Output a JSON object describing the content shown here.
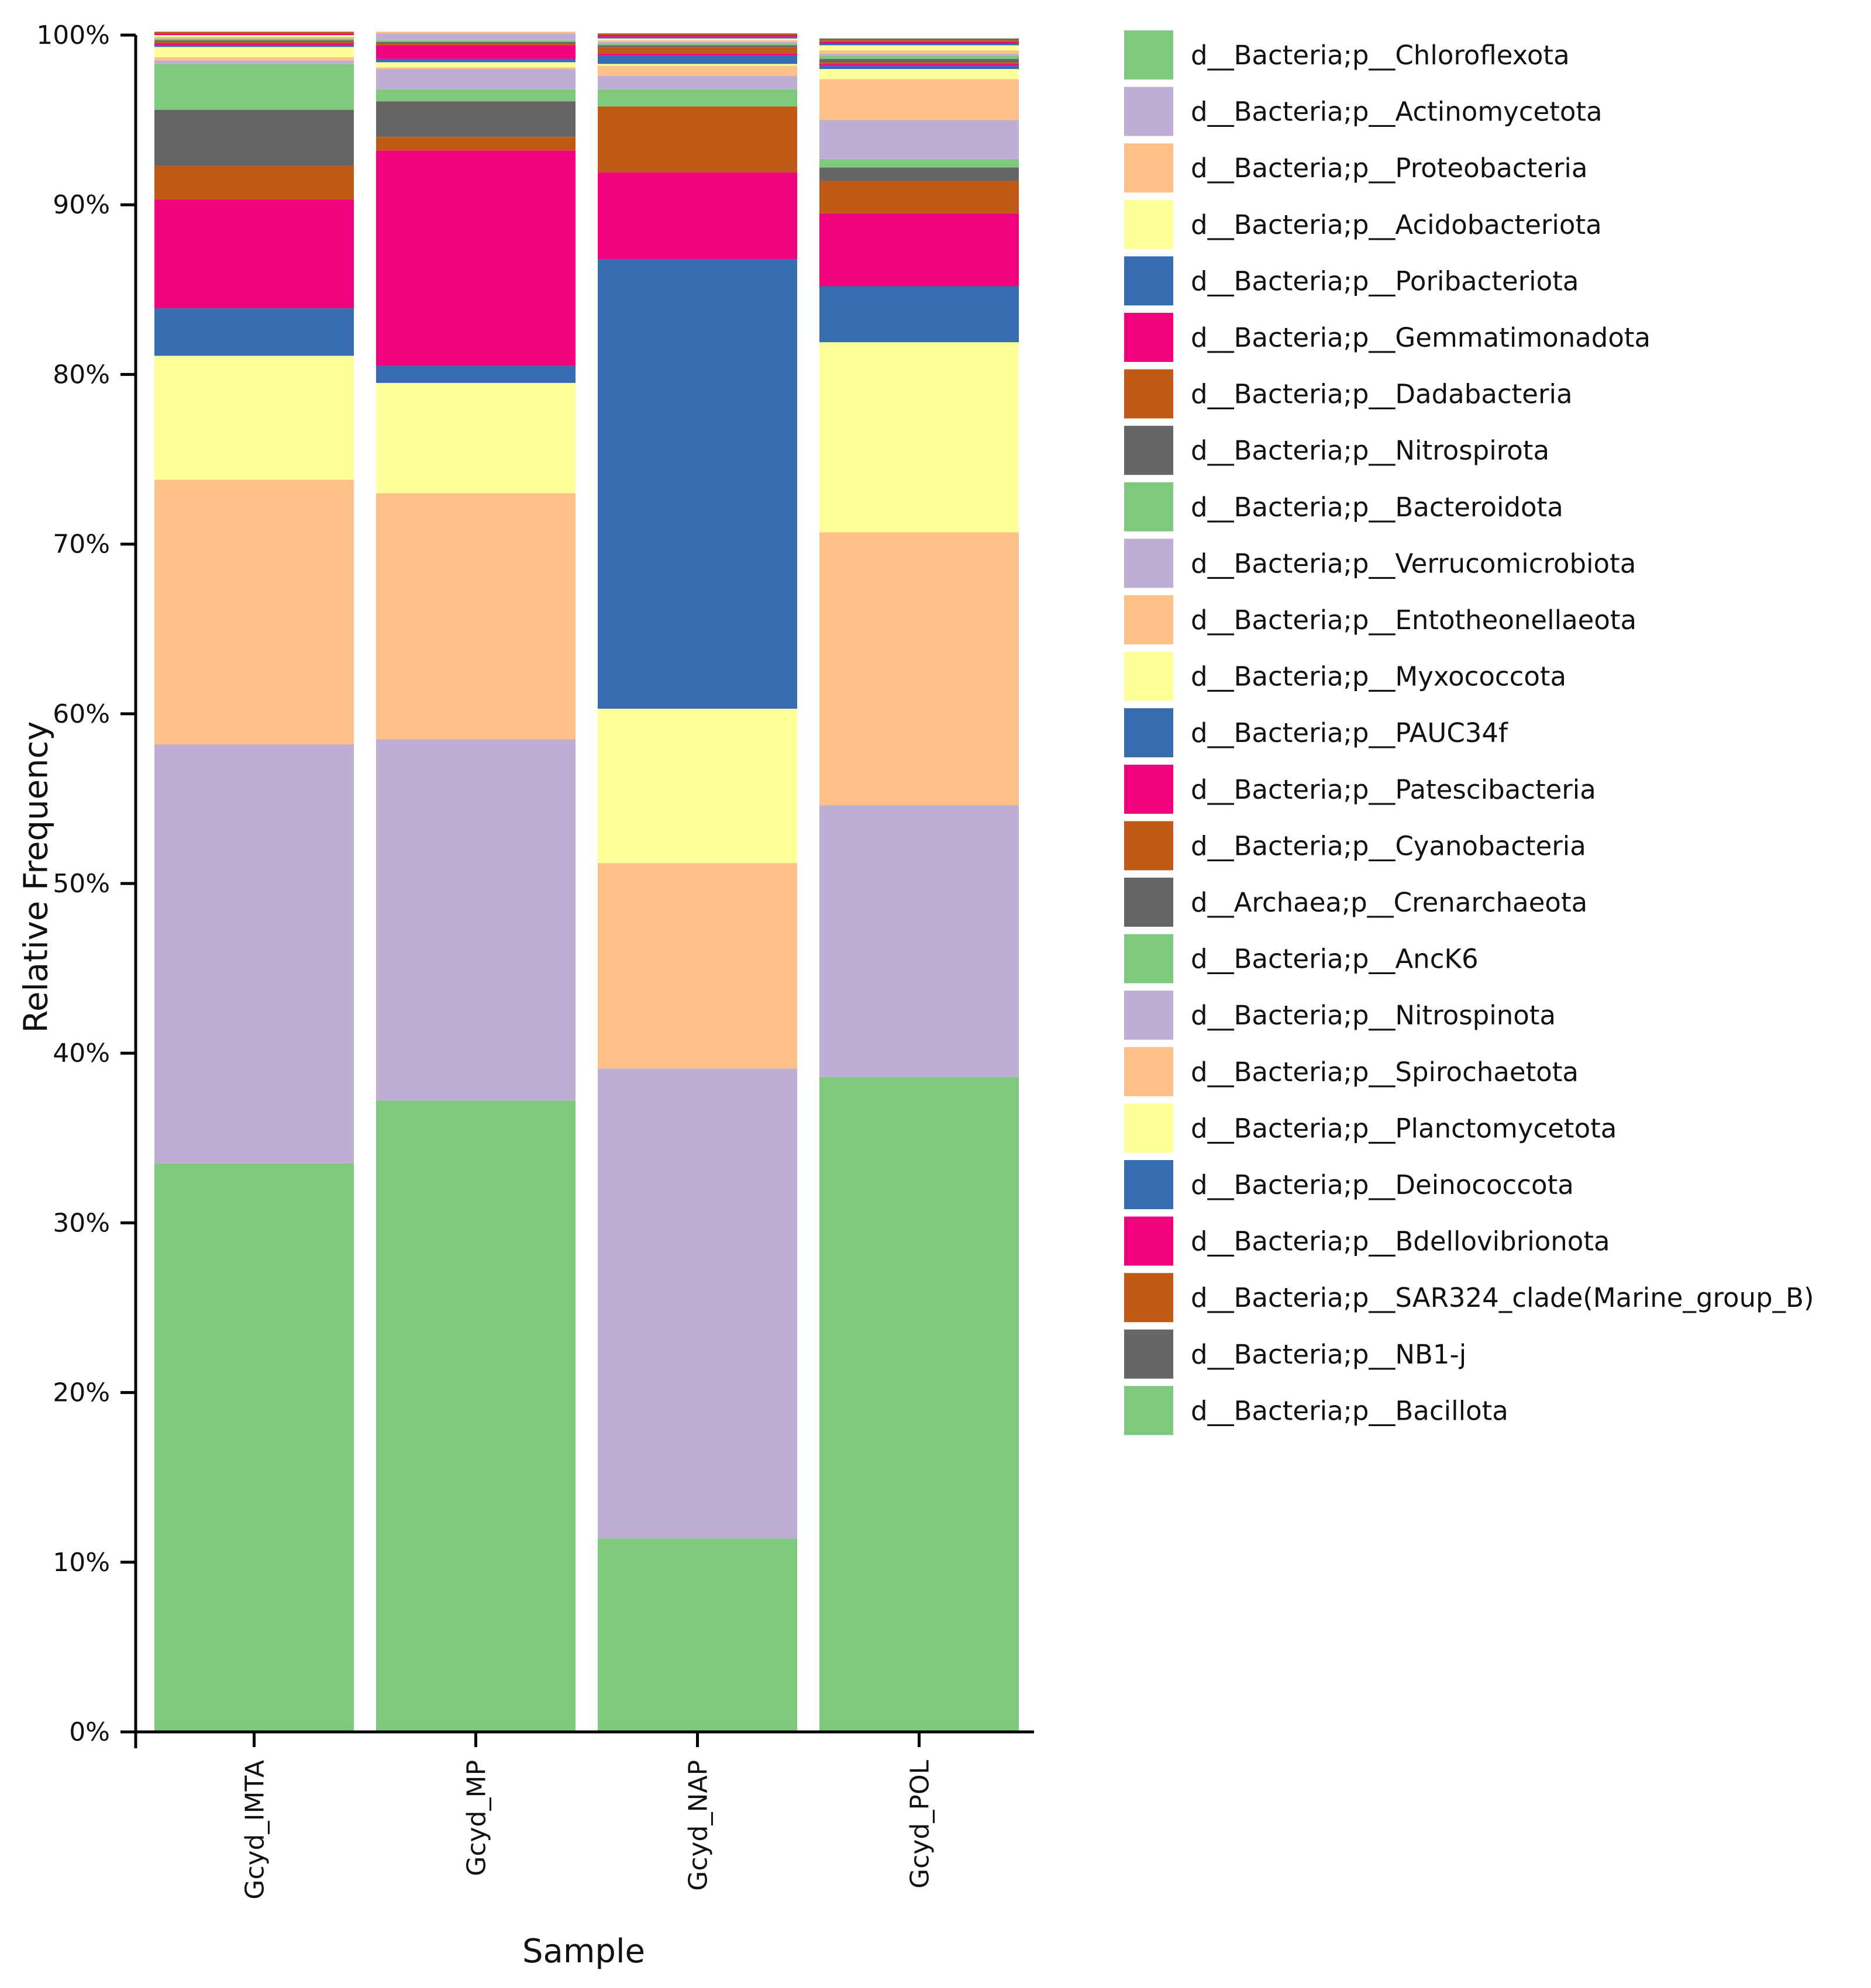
{
  "chart_data": {
    "type": "stacked-bar",
    "title": "",
    "xlabel": "Sample",
    "ylabel": "Relative Frequency",
    "ylim": [
      0,
      100
    ],
    "yticks": [
      "0%",
      "10%",
      "20%",
      "30%",
      "40%",
      "50%",
      "60%",
      "70%",
      "80%",
      "90%",
      "100%"
    ],
    "categories": [
      "Gcyd_IMTA",
      "Gcyd_MP",
      "Gcyd_NAP",
      "Gcyd_POL"
    ],
    "legend_position": "right",
    "series": [
      {
        "name": "d__Bacteria;p__Chloroflexota",
        "color": "#7fc97f",
        "values": [
          33.5,
          37.2,
          11.4,
          38.6
        ]
      },
      {
        "name": "d__Bacteria;p__Actinomycetota",
        "color": "#beaed4",
        "values": [
          24.7,
          21.3,
          27.7,
          16.0
        ]
      },
      {
        "name": "d__Bacteria;p__Proteobacteria",
        "color": "#fdc086",
        "values": [
          15.6,
          14.5,
          12.1,
          16.1
        ]
      },
      {
        "name": "d__Bacteria;p__Acidobacteriota",
        "color": "#ffff99",
        "values": [
          7.3,
          6.5,
          9.1,
          11.2
        ]
      },
      {
        "name": "d__Bacteria;p__Poribacteriota",
        "color": "#386cb0",
        "values": [
          2.8,
          1.0,
          26.5,
          3.3
        ]
      },
      {
        "name": "d__Bacteria;p__Gemmatimonadota",
        "color": "#f0027f",
        "values": [
          6.4,
          12.7,
          5.1,
          4.3
        ]
      },
      {
        "name": "d__Bacteria;p__Dadabacteria",
        "color": "#bf5b17",
        "values": [
          2.0,
          0.8,
          3.9,
          1.9
        ]
      },
      {
        "name": "d__Bacteria;p__Nitrospirota",
        "color": "#666666",
        "values": [
          3.3,
          2.1,
          0.0,
          0.8
        ]
      },
      {
        "name": "d__Bacteria;p__Bacteroidota",
        "color": "#7fc97f",
        "values": [
          2.7,
          0.7,
          1.0,
          0.5
        ]
      },
      {
        "name": "d__Bacteria;p__Verrucomicrobiota",
        "color": "#beaed4",
        "values": [
          0.2,
          1.2,
          0.8,
          2.3
        ]
      },
      {
        "name": "d__Bacteria;p__Entotheonellaeota",
        "color": "#fdc086",
        "values": [
          0.2,
          0.1,
          0.6,
          2.4
        ]
      },
      {
        "name": "d__Bacteria;p__Myxococcota",
        "color": "#ffff99",
        "values": [
          0.6,
          0.3,
          0.1,
          0.6
        ]
      },
      {
        "name": "d__Bacteria;p__PAUC34f",
        "color": "#386cb0",
        "values": [
          0.1,
          0.2,
          0.5,
          0.2
        ]
      },
      {
        "name": "d__Bacteria;p__Patescibacteria",
        "color": "#f0027f",
        "values": [
          0.1,
          0.8,
          0.1,
          0.1
        ]
      },
      {
        "name": "d__Bacteria;p__Cyanobacteria",
        "color": "#bf5b17",
        "values": [
          0.1,
          0.1,
          0.4,
          0.1
        ]
      },
      {
        "name": "d__Archaea;p__Crenarchaeota",
        "color": "#666666",
        "values": [
          0.1,
          0.1,
          0.1,
          0.2
        ]
      },
      {
        "name": "d__Bacteria;p__AncK6",
        "color": "#7fc97f",
        "values": [
          0.1,
          0.1,
          0.1,
          0.2
        ]
      },
      {
        "name": "d__Bacteria;p__Nitrospinota",
        "color": "#beaed4",
        "values": [
          0.0,
          0.4,
          0.1,
          0.1
        ]
      },
      {
        "name": "d__Bacteria;p__Spirochaetota",
        "color": "#fdc086",
        "values": [
          0.1,
          0.1,
          0.1,
          0.2
        ]
      },
      {
        "name": "d__Bacteria;p__Planctomycetota",
        "color": "#ffff99",
        "values": [
          0.1,
          0.0,
          0.1,
          0.3
        ]
      },
      {
        "name": "d__Bacteria;p__Deinococcota",
        "color": "#386cb0",
        "values": [
          0.0,
          0.0,
          0.1,
          0.1
        ]
      },
      {
        "name": "d__Bacteria;p__Bdellovibrionota",
        "color": "#f0027f",
        "values": [
          0.1,
          0.0,
          0.1,
          0.1
        ]
      },
      {
        "name": "d__Bacteria;p__SAR324_clade(Marine_group_B)",
        "color": "#bf5b17",
        "values": [
          0.1,
          0.0,
          0.1,
          0.1
        ]
      },
      {
        "name": "d__Bacteria;p__NB1-j",
        "color": "#666666",
        "values": [
          0.0,
          0.0,
          0.0,
          0.1
        ]
      },
      {
        "name": "d__Bacteria;p__Bacillota",
        "color": "#7fc97f",
        "values": [
          0.0,
          0.0,
          0.0,
          0.0
        ]
      }
    ]
  }
}
